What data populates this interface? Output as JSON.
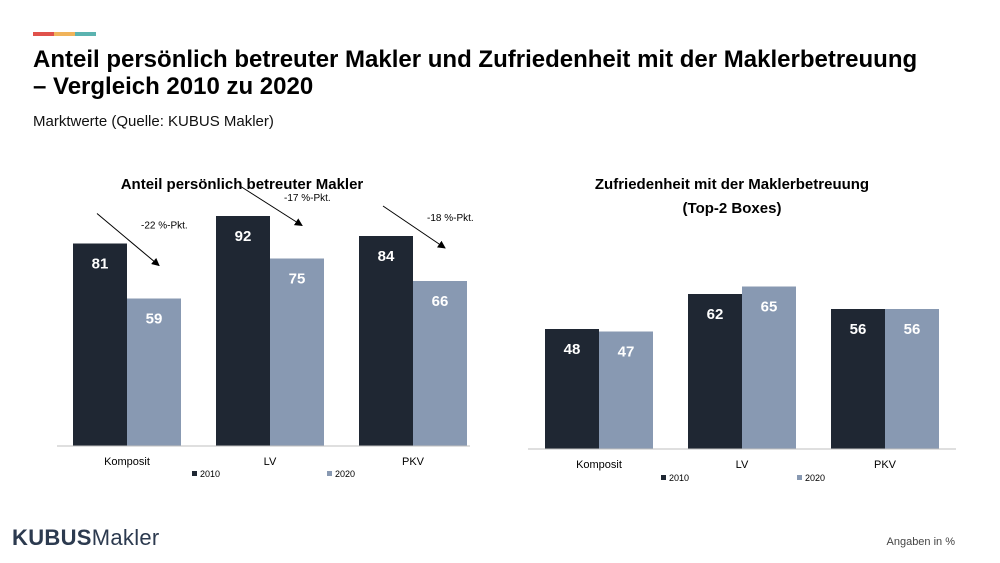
{
  "accent_colors": [
    "#e0514b",
    "#f0b35a",
    "#5bb3b0"
  ],
  "header": {
    "title": "Anteil persönlich betreuter Makler und Zufriedenheit mit der Maklerbetreuung – Vergleich 2010 zu 2020",
    "subtitle": "Marktwerte (Quelle: KUBUS Makler)"
  },
  "colors": {
    "s2010": "#1f2733",
    "s2020": "#8899b2"
  },
  "chart_data": [
    {
      "type": "bar",
      "title": "Anteil persönlich betreuter Makler",
      "categories": [
        "Komposit",
        "LV",
        "PKV"
      ],
      "series": [
        {
          "name": "2010",
          "values": [
            81,
            92,
            84
          ]
        },
        {
          "name": "2020",
          "values": [
            59,
            75,
            66
          ]
        }
      ],
      "annotations": [
        "-22 %-Pkt.",
        "-17 %-Pkt.",
        "-18 %-Pkt."
      ],
      "ylim": [
        0,
        100
      ],
      "legend": "bottom",
      "grid": false
    },
    {
      "type": "bar",
      "title": "Zufriedenheit mit der Maklerbetreuung",
      "subtitle": "(Top-2 Boxes)",
      "categories": [
        "Komposit",
        "LV",
        "PKV"
      ],
      "series": [
        {
          "name": "2010",
          "values": [
            48,
            62,
            56
          ]
        },
        {
          "name": "2020",
          "values": [
            47,
            65,
            56
          ]
        }
      ],
      "ylim": [
        0,
        100
      ],
      "legend": "bottom",
      "grid": false
    }
  ],
  "footer": {
    "logo_bold": "KUBUS",
    "logo_light": "Makler",
    "note": "Angaben in %"
  }
}
